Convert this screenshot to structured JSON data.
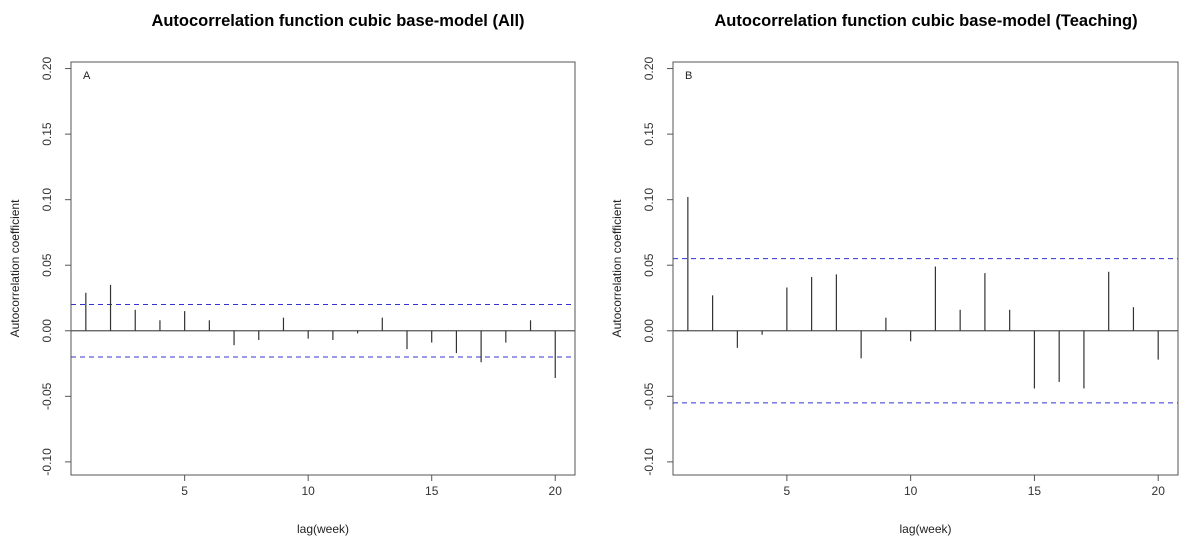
{
  "chart_data": [
    {
      "type": "bar",
      "title": "Autocorrelation function cubic base-model (All)",
      "panel_label": "A",
      "xlabel": "lag(week)",
      "ylabel": "Autocorrelation coefficient",
      "xlim": [
        0.4,
        20.8
      ],
      "ylim": [
        -0.11,
        0.205
      ],
      "xticks": [
        5,
        10,
        15,
        20
      ],
      "yticks": [
        -0.1,
        -0.05,
        0.0,
        0.05,
        0.1,
        0.15,
        0.2
      ],
      "ytick_labels": [
        "-0.10",
        "-0.05",
        "0.00",
        "0.05",
        "0.10",
        "0.15",
        "0.20"
      ],
      "confidence_bound": 0.02,
      "bound_color": "#3333cc",
      "lags": [
        1,
        2,
        3,
        4,
        5,
        6,
        7,
        8,
        9,
        10,
        11,
        12,
        13,
        14,
        15,
        16,
        17,
        18,
        19,
        20
      ],
      "values": [
        0.029,
        0.035,
        0.016,
        0.008,
        0.015,
        0.008,
        -0.011,
        -0.007,
        0.01,
        -0.006,
        -0.007,
        -0.002,
        0.01,
        -0.014,
        -0.009,
        -0.017,
        -0.024,
        -0.009,
        0.008,
        -0.036
      ],
      "grid": false
    },
    {
      "type": "bar",
      "title": "Autocorrelation function cubic base-model (Teaching)",
      "panel_label": "B",
      "xlabel": "lag(week)",
      "ylabel": "Autocorrelation coefficient",
      "xlim": [
        0.4,
        20.8
      ],
      "ylim": [
        -0.11,
        0.205
      ],
      "xticks": [
        5,
        10,
        15,
        20
      ],
      "yticks": [
        -0.1,
        -0.05,
        0.0,
        0.05,
        0.1,
        0.15,
        0.2
      ],
      "ytick_labels": [
        "-0.10",
        "-0.05",
        "0.00",
        "0.05",
        "0.10",
        "0.15",
        "0.20"
      ],
      "confidence_bound": 0.055,
      "bound_color": "#3333cc",
      "lags": [
        1,
        2,
        3,
        4,
        5,
        6,
        7,
        8,
        9,
        10,
        11,
        12,
        13,
        14,
        15,
        16,
        17,
        18,
        19,
        20
      ],
      "values": [
        0.102,
        0.027,
        -0.013,
        -0.003,
        0.033,
        0.041,
        0.043,
        -0.021,
        0.01,
        -0.008,
        0.049,
        0.016,
        0.044,
        0.016,
        -0.044,
        -0.039,
        -0.044,
        0.045,
        0.018,
        -0.022
      ],
      "grid": false
    }
  ]
}
